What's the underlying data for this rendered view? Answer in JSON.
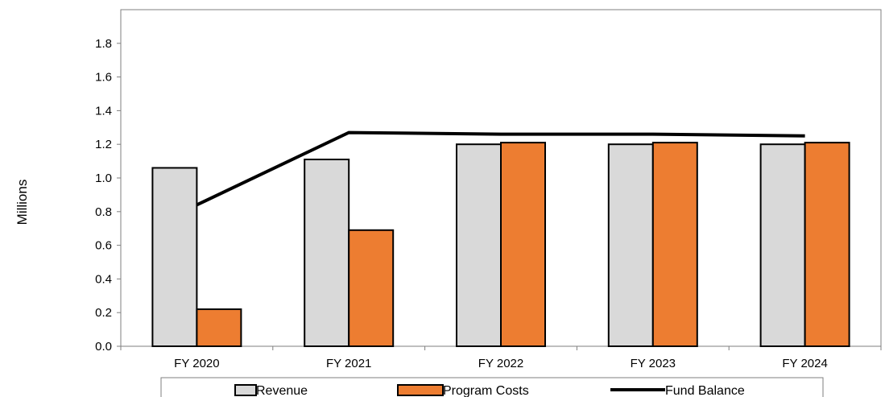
{
  "chart_data": {
    "type": "bar",
    "title": "",
    "xlabel": "",
    "ylabel": "Millions",
    "ylim": [
      0,
      2.0
    ],
    "yticks": [
      0.0,
      0.2,
      0.4,
      0.6,
      0.8,
      1.0,
      1.2,
      1.4,
      1.6,
      1.8
    ],
    "ytick_labels": [
      "0.0",
      "0.2",
      "0.4",
      "0.6",
      "0.8",
      "1.0",
      "1.2",
      "1.4",
      "1.6",
      "1.8"
    ],
    "categories": [
      "FY 2020",
      "FY 2021",
      "FY 2022",
      "FY 2023",
      "FY 2024"
    ],
    "series": [
      {
        "name": "Revenue",
        "kind": "bar",
        "color": "#d9d9d9",
        "values": [
          1.06,
          1.11,
          1.2,
          1.2,
          1.2
        ]
      },
      {
        "name": "Program Costs",
        "kind": "bar",
        "color": "#ed7d31",
        "values": [
          0.22,
          0.69,
          1.21,
          1.21,
          1.21
        ]
      },
      {
        "name": "Fund Balance",
        "kind": "line",
        "color": "#000000",
        "values": [
          0.84,
          1.27,
          1.26,
          1.26,
          1.25
        ]
      }
    ],
    "grid": false,
    "legend": "bottom"
  }
}
